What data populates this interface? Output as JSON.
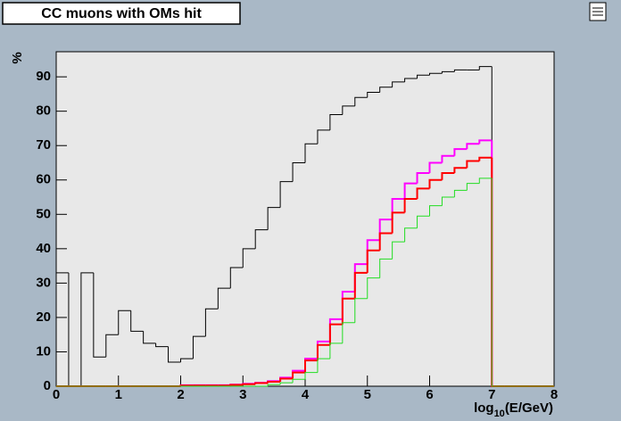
{
  "chart_data": {
    "type": "step-histogram",
    "title": "CC muons with OMs hit",
    "y_label": "%",
    "x_label": {
      "base": "log",
      "sub": "10",
      "rest": "(E/GeV)"
    },
    "bins": [
      0,
      0.2,
      0.4,
      0.6,
      0.8,
      1,
      1.2,
      1.4,
      1.6,
      1.8,
      2,
      2.2,
      2.4,
      2.6,
      2.8,
      3,
      3.2,
      3.4,
      3.6,
      3.8,
      4,
      4.2,
      4.4,
      4.6,
      4.8,
      5,
      5.2,
      5.4,
      5.6,
      5.8,
      6,
      6.2,
      6.4,
      6.6,
      6.8,
      7,
      7.2,
      7.4,
      7.6,
      7.8,
      8
    ],
    "series": [
      {
        "color": "#000000",
        "width": 1,
        "values": [
          33,
          0,
          33,
          8.5,
          15,
          22,
          16,
          12.5,
          11.5,
          7,
          8,
          14.5,
          22.5,
          28.5,
          34.5,
          40,
          45.5,
          52,
          59.5,
          65,
          70.5,
          74.5,
          79,
          81.5,
          84,
          85.5,
          87,
          88.5,
          89.5,
          90.5,
          91,
          91.5,
          92,
          92,
          93,
          0,
          0,
          0,
          0,
          0
        ]
      },
      {
        "color": "#ff00ff",
        "width": 2,
        "values": [
          0,
          0,
          0,
          0,
          0,
          0,
          0,
          0,
          0,
          0,
          0.3,
          0.3,
          0.3,
          0.3,
          0.5,
          0.7,
          1,
          1.5,
          2.5,
          4.5,
          8,
          13,
          19.5,
          27.5,
          35.5,
          42.5,
          48.5,
          54.5,
          59,
          62,
          65,
          67,
          69,
          70.5,
          71.5,
          0,
          0,
          0,
          0,
          0
        ]
      },
      {
        "color": "#ff0000",
        "width": 2,
        "values": [
          0,
          0,
          0,
          0,
          0,
          0,
          0,
          0,
          0,
          0,
          0.2,
          0.2,
          0.2,
          0.2,
          0.4,
          0.6,
          0.9,
          1.3,
          2.2,
          4,
          7.5,
          12,
          18,
          25.5,
          33,
          39.5,
          44.5,
          50.5,
          54.5,
          57.5,
          60,
          62,
          63.5,
          65.5,
          66.5,
          0,
          0,
          0,
          0,
          0
        ]
      },
      {
        "color": "#22dd22",
        "width": 1,
        "values": [
          0,
          0,
          0,
          0,
          0,
          0,
          0,
          0,
          0,
          0,
          0,
          0,
          0,
          0,
          0,
          0,
          0,
          0.5,
          1,
          2,
          4,
          8,
          12.5,
          18.5,
          25.5,
          31.5,
          37,
          42,
          46,
          49.5,
          52.5,
          55,
          57,
          59,
          60.5,
          0,
          0,
          0,
          0,
          0
        ]
      }
    ],
    "xlim": [
      0,
      8
    ],
    "xticks": [
      0,
      1,
      2,
      3,
      4,
      5,
      6,
      7,
      8
    ],
    "ylim": [
      0,
      97.3
    ],
    "yticks": [
      0,
      10,
      20,
      30,
      40,
      50,
      60,
      70,
      80,
      90
    ]
  }
}
